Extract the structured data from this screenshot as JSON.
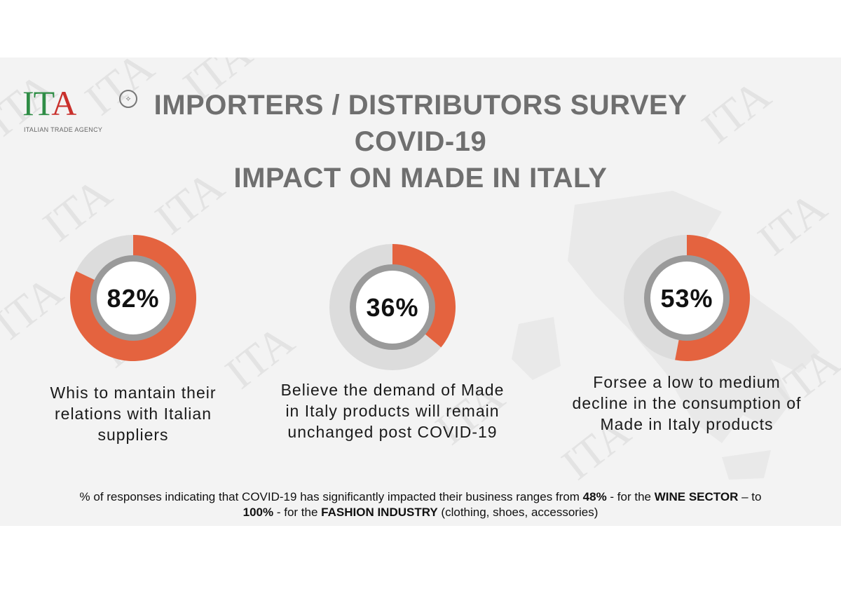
{
  "header": {
    "logo": {
      "letters": "ITA",
      "subtitle": "ITALIAN TRADE AGENCY"
    },
    "title_lines": [
      "IMPORTERS / DISTRIBUTORS SURVEY",
      "COVID-19",
      "IMPACT ON MADE IN ITALY"
    ]
  },
  "colors": {
    "accent": "#e4633f",
    "ring_track": "#dcdcdc",
    "inner_ring": "#9a9a9a",
    "title": "#6f6f6f"
  },
  "chart_data": [
    {
      "type": "pie",
      "variant": "donut",
      "value": 82,
      "label": "82%",
      "caption": [
        "Whis to mantain their",
        "relations with Italian",
        "suppliers"
      ]
    },
    {
      "type": "pie",
      "variant": "donut",
      "value": 36,
      "label": "36%",
      "caption": [
        "Believe the demand of Made",
        "in Italy products will remain",
        "unchanged post COVID-19"
      ]
    },
    {
      "type": "pie",
      "variant": "donut",
      "value": 53,
      "label": "53%",
      "caption": [
        "Forsee a low to medium",
        "decline in the consumption of",
        "Made in Italy products"
      ]
    }
  ],
  "footnote": {
    "p1": "%  of responses indicating that COVID-19 has significantly impacted their business ranges from ",
    "b1": "48%",
    "p2": " - for the ",
    "b2": "WINE SECTOR",
    "p3": " – to",
    "b3": "100%",
    "p4": " - for the ",
    "b4": "FASHION INDUSTRY",
    "p5": " (clothing, shoes, accessories)"
  }
}
